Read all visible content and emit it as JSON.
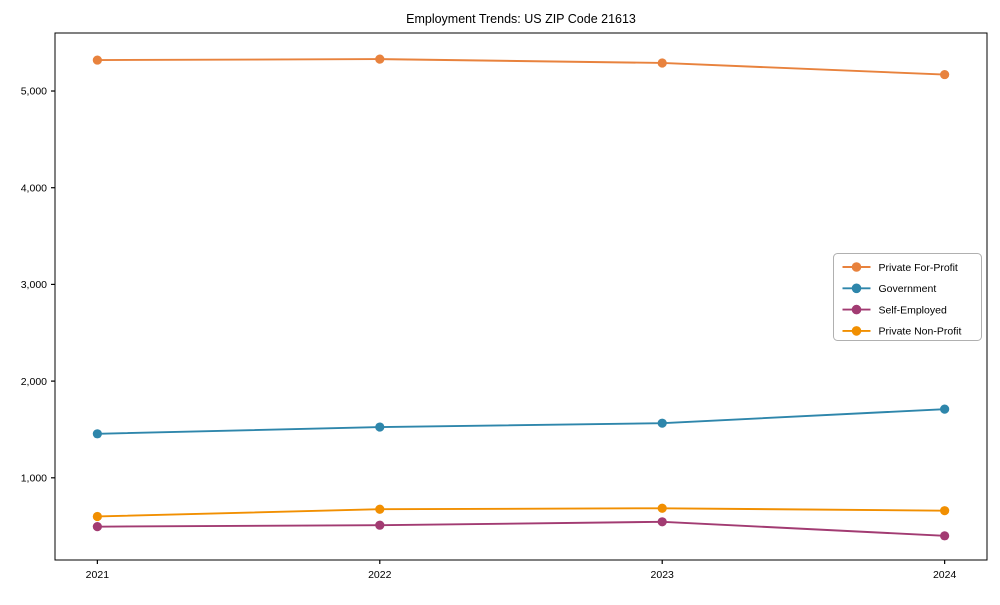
{
  "figure": {
    "background": "#ffffff",
    "axis_color": "#000000",
    "text_color": "#000000",
    "legend_border_color": "#b0b0b0",
    "legend_background": "#ffffff"
  },
  "chart_data": {
    "type": "line",
    "title": "Employment Trends: US ZIP Code 21613",
    "xlabel": "",
    "ylabel": "",
    "grid": false,
    "x": [
      2021,
      2022,
      2023,
      2024
    ],
    "x_tick_labels": [
      "2021",
      "2022",
      "2023",
      "2024"
    ],
    "xlim": [
      2020.85,
      2024.15
    ],
    "ylim": [
      150,
      5600
    ],
    "yticks": [
      {
        "value": 1000,
        "label": "1,000"
      },
      {
        "value": 2000,
        "label": "2,000"
      },
      {
        "value": 3000,
        "label": "3,000"
      },
      {
        "value": 4000,
        "label": "4,000"
      },
      {
        "value": 5000,
        "label": "5,000"
      }
    ],
    "series": [
      {
        "name": "Private For-Profit",
        "color": "#E8823D",
        "values": [
          5320,
          5330,
          5290,
          5170
        ]
      },
      {
        "name": "Government",
        "color": "#2E86AB",
        "values": [
          1455,
          1525,
          1565,
          1710
        ]
      },
      {
        "name": "Self-Employed",
        "color": "#A23B72",
        "values": [
          495,
          510,
          545,
          400
        ]
      },
      {
        "name": "Private Non-Profit",
        "color": "#F18F01",
        "values": [
          600,
          675,
          685,
          660
        ]
      }
    ],
    "legend": {
      "position": "center-right",
      "entries": [
        "Private For-Profit",
        "Government",
        "Self-Employed",
        "Private Non-Profit"
      ]
    }
  }
}
